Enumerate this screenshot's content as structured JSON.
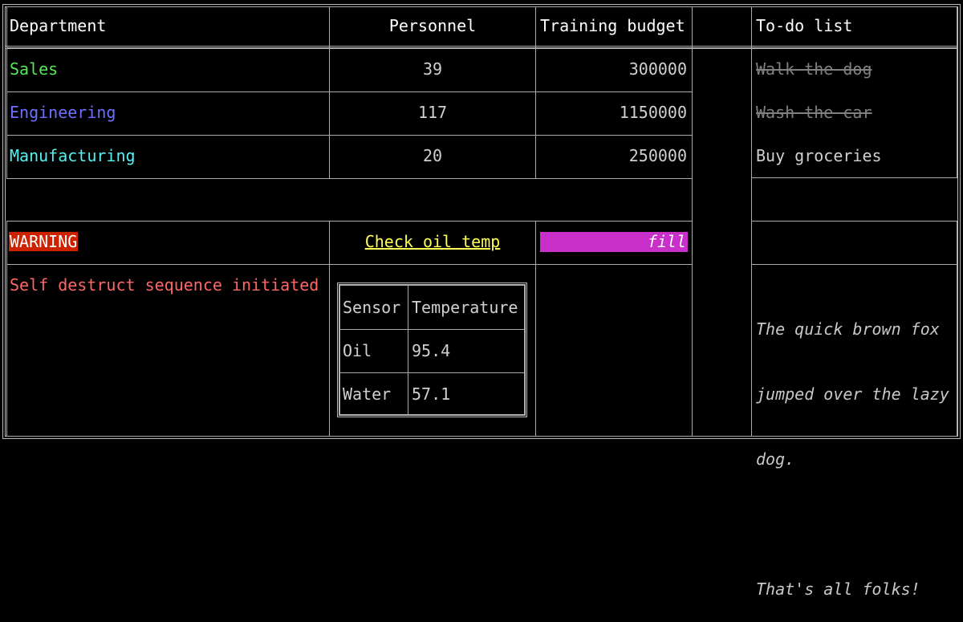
{
  "table": {
    "headers": [
      "Department",
      "Personnel",
      "Training budget",
      "To-do list"
    ],
    "rows": [
      {
        "department": "Sales",
        "personnel": "39",
        "budget": "300000",
        "color": "#55e855"
      },
      {
        "department": "Engineering",
        "personnel": "117",
        "budget": "1150000",
        "color": "#6f6fff"
      },
      {
        "department": "Manufacturing",
        "personnel": "20",
        "budget": "250000",
        "color": "#55f0f0"
      }
    ]
  },
  "todo": [
    {
      "label": "Walk the dog",
      "done": true
    },
    {
      "label": "Wash the car",
      "done": true
    },
    {
      "label": "Buy groceries",
      "done": false
    }
  ],
  "status": {
    "warning": "WARNING",
    "warning_bg": "#cc2200",
    "link": "Check oil temp",
    "link_color": "#ffff55",
    "bar_label": "fill",
    "bar_color": "#c930c9",
    "bar_fill_percent": 100,
    "message": "Self destruct sequence initiated",
    "message_color": "#ff6666"
  },
  "sensors": {
    "headers": [
      "Sensor",
      "Temperature"
    ],
    "rows": [
      [
        "Oil",
        "95.4"
      ],
      [
        "Water",
        "57.1"
      ]
    ]
  },
  "paragraph": {
    "lines": [
      "The quick brown fox",
      "jumped over the lazy",
      "dog.",
      "",
      "That's all folks!"
    ]
  }
}
